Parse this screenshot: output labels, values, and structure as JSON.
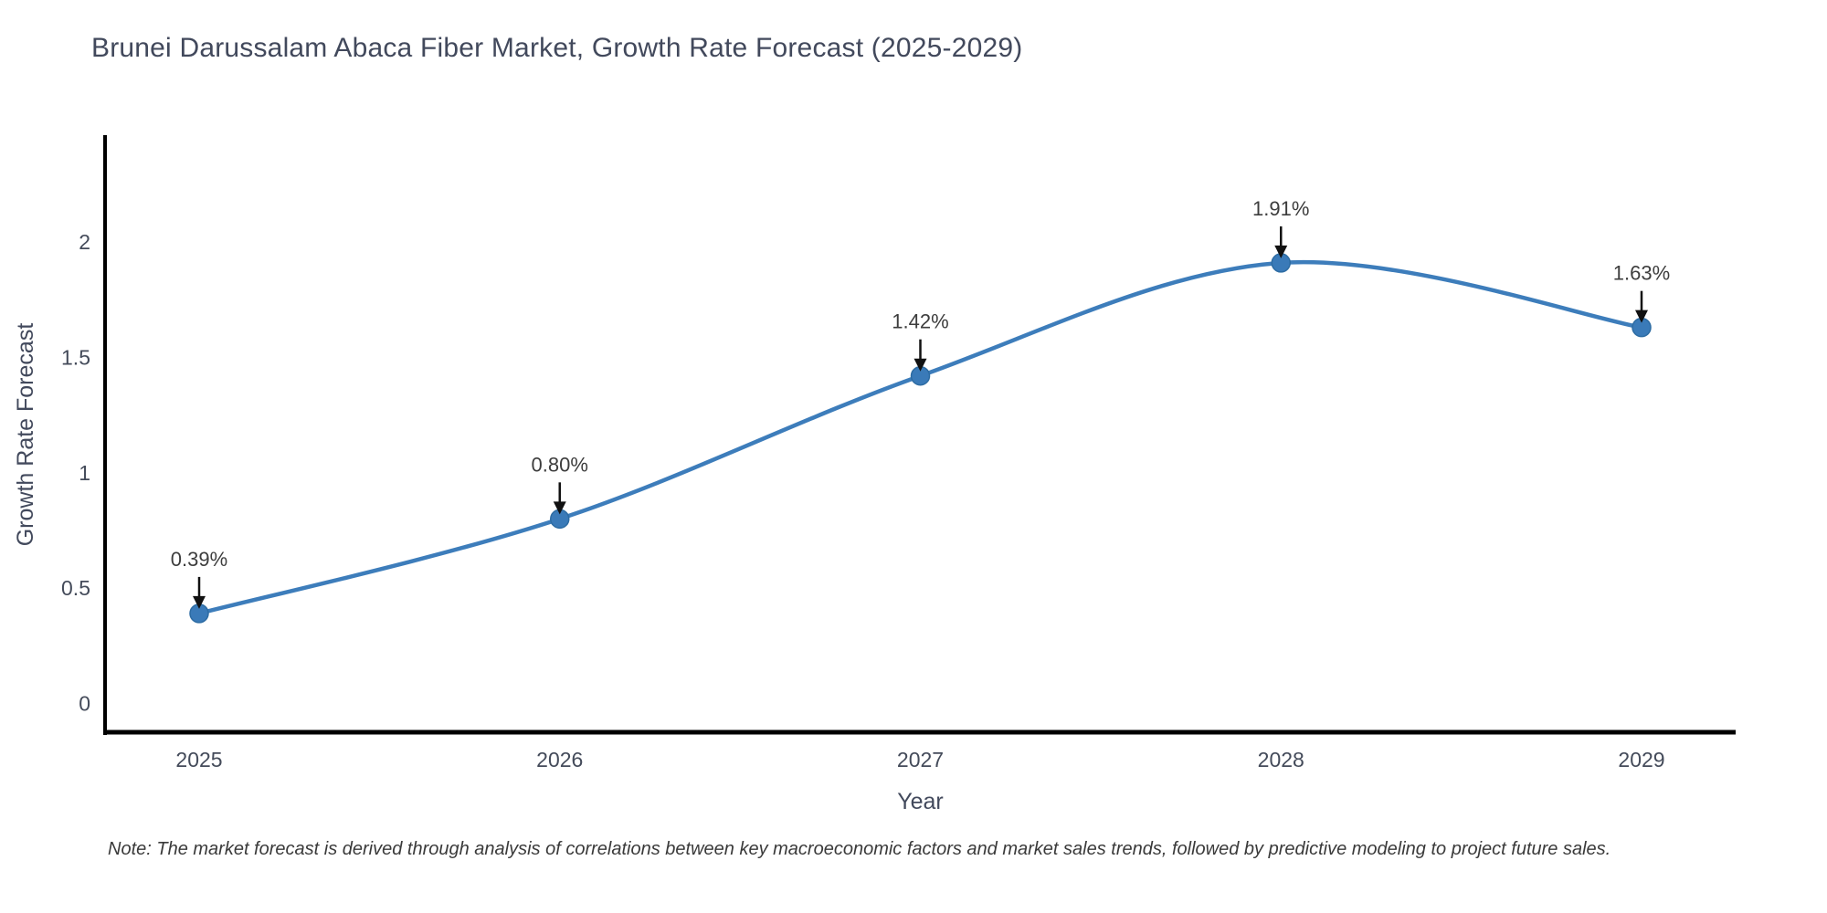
{
  "page": {
    "background": "#ffffff"
  },
  "title": "Brunei Darussalam Abaca Fiber Market, Growth Rate Forecast (2025-2029)",
  "footnote": "Note: The market forecast is derived through analysis of correlations between key macroeconomic factors and market sales trends, followed by predictive modeling to project future sales.",
  "chart_data": {
    "type": "line",
    "title": "Brunei Darussalam Abaca Fiber Market, Growth Rate Forecast (2025-2029)",
    "x": [
      2025,
      2026,
      2027,
      2028,
      2029
    ],
    "series": [
      {
        "name": "Growth Rate Forecast",
        "values": [
          0.39,
          0.8,
          1.42,
          1.91,
          1.63
        ]
      }
    ],
    "point_labels": [
      "0.39%",
      "0.80%",
      "1.42%",
      "1.91%",
      "1.63%"
    ],
    "xlabel": "Year",
    "ylabel": "Growth Rate Forecast",
    "yticks": [
      0,
      0.5,
      1,
      1.5,
      2
    ],
    "ylim": [
      -0.125,
      2.456
    ],
    "grid": false,
    "legend": "none",
    "smooth": true,
    "annotations_have_arrows": true,
    "colors": {
      "line": "#3d7dbb",
      "marker": "#3a7ab8",
      "marker_edge": "#2d6ca3",
      "axis": "#000000",
      "tick_label": "#444b5a",
      "axis_title": "#42495c",
      "annotation_text": "#3d3d3d",
      "arrow": "#111111"
    }
  }
}
